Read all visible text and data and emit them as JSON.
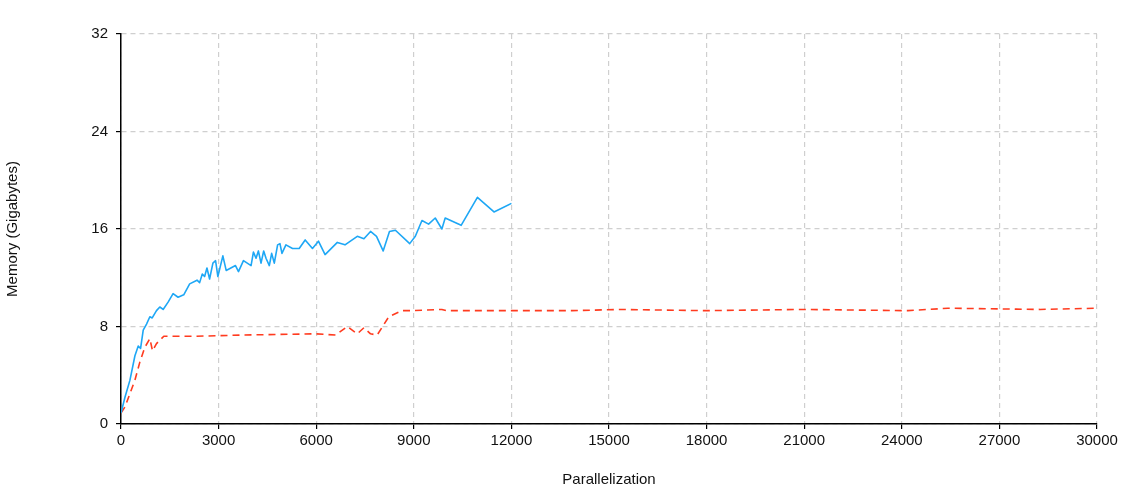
{
  "chart_data": {
    "type": "line",
    "xlabel": "Parallelization",
    "ylabel": "Memory (Gigabytes)",
    "xlim": [
      0,
      30000
    ],
    "xticks": [
      0,
      3000,
      6000,
      9000,
      12000,
      15000,
      18000,
      21000,
      24000,
      27000,
      30000
    ],
    "ylim": [
      0,
      32
    ],
    "yticks": [
      0,
      8,
      16,
      24,
      32
    ],
    "grid": true,
    "legend": false,
    "marker": "none",
    "series": [
      {
        "color": "#1ea7f5",
        "line_style": "solid",
        "x": [
          0,
          122,
          275,
          428,
          530,
          602,
          683,
          785,
          887,
          959,
          1091,
          1193,
          1295,
          1448,
          1601,
          1754,
          1928,
          2111,
          2336,
          2417,
          2499,
          2570,
          2642,
          2723,
          2825,
          2907,
          2978,
          3131,
          3233,
          3519,
          3611,
          3764,
          3998,
          4070,
          4151,
          4223,
          4304,
          4386,
          4457,
          4559,
          4631,
          4712,
          4814,
          4886,
          4947,
          5069,
          5273,
          5477,
          5661,
          5885,
          6069,
          6273,
          6650,
          6885,
          7263,
          7467,
          7670,
          7854,
          8058,
          8252,
          8435,
          8874,
          9047,
          9251,
          9455,
          9659,
          9863,
          9965,
          10455,
          10955,
          11465,
          12000
        ],
        "values": [
          0.9,
          2.2,
          3.6,
          5.6,
          6.4,
          6.2,
          7.7,
          8.2,
          8.8,
          8.7,
          9.3,
          9.6,
          9.4,
          10.0,
          10.7,
          10.4,
          10.6,
          11.5,
          11.8,
          11.6,
          12.3,
          12.1,
          12.8,
          11.9,
          13.2,
          13.4,
          12.1,
          13.8,
          12.6,
          13.0,
          12.5,
          13.4,
          13.0,
          14.1,
          13.6,
          14.2,
          13.2,
          14.2,
          13.6,
          13.0,
          14.0,
          13.2,
          14.7,
          14.8,
          14.0,
          14.7,
          14.4,
          14.4,
          15.1,
          14.4,
          15.0,
          13.9,
          14.9,
          14.7,
          15.4,
          15.2,
          15.8,
          15.4,
          14.2,
          15.8,
          15.9,
          14.8,
          15.4,
          16.7,
          16.4,
          16.9,
          16.0,
          16.9,
          16.3,
          18.6,
          17.4,
          18.1
        ]
      },
      {
        "color": "#ff3b1f",
        "line_style": "dashed",
        "x": [
          0,
          122,
          275,
          428,
          581,
          734,
          887,
          969,
          1091,
          1315,
          1703,
          2315,
          3743,
          5987,
          6599,
          6956,
          7263,
          7467,
          7670,
          7874,
          8231,
          8640,
          8946,
          9863,
          10016,
          11934,
          13864,
          15340,
          17920,
          20996,
          24190,
          25420,
          28250,
          30000
        ],
        "values": [
          0.9,
          1.4,
          2.5,
          3.6,
          5.1,
          6.3,
          7.0,
          6.0,
          6.6,
          7.2,
          7.2,
          7.2,
          7.3,
          7.4,
          7.3,
          8.0,
          7.4,
          7.9,
          7.4,
          7.3,
          8.8,
          9.3,
          9.3,
          9.4,
          9.3,
          9.3,
          9.3,
          9.4,
          9.3,
          9.4,
          9.3,
          9.5,
          9.4,
          9.5
        ]
      }
    ]
  }
}
